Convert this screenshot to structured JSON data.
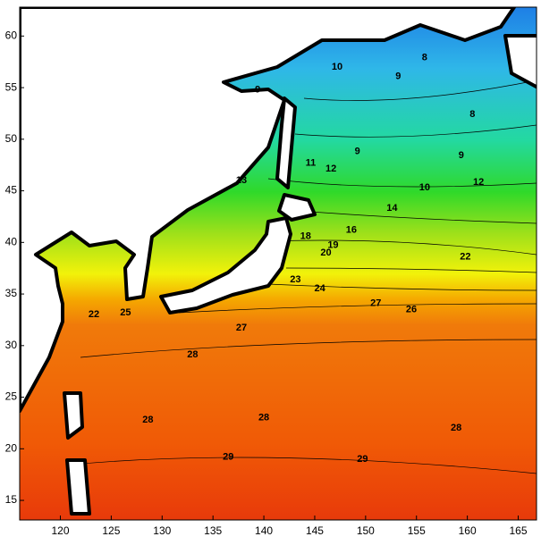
{
  "chart_data": {
    "type": "contour",
    "xlim": [
      116,
      166.8
    ],
    "ylim": [
      13.1,
      62.8
    ],
    "xticks": [
      120,
      125,
      130,
      135,
      140,
      145,
      150,
      155,
      160,
      165
    ],
    "yticks": [
      15,
      20,
      25,
      30,
      35,
      40,
      45,
      50,
      55,
      60
    ],
    "contour_labels": [
      {
        "text": "10",
        "x": 147.2,
        "y": 57.0
      },
      {
        "text": "9",
        "x": 153.2,
        "y": 56.1
      },
      {
        "text": "8",
        "x": 155.8,
        "y": 57.9
      },
      {
        "text": "9",
        "x": 139.4,
        "y": 54.8
      },
      {
        "text": "8",
        "x": 160.5,
        "y": 52.4
      },
      {
        "text": "9",
        "x": 159.4,
        "y": 48.4
      },
      {
        "text": "9",
        "x": 149.2,
        "y": 48.8
      },
      {
        "text": "11",
        "x": 144.6,
        "y": 47.7
      },
      {
        "text": "12",
        "x": 146.6,
        "y": 47.1
      },
      {
        "text": "13",
        "x": 137.8,
        "y": 46.0
      },
      {
        "text": "10",
        "x": 155.8,
        "y": 45.3
      },
      {
        "text": "12",
        "x": 161.1,
        "y": 45.8
      },
      {
        "text": "14",
        "x": 152.6,
        "y": 43.3
      },
      {
        "text": "16",
        "x": 148.6,
        "y": 41.2
      },
      {
        "text": "18",
        "x": 144.1,
        "y": 40.6
      },
      {
        "text": "19",
        "x": 146.8,
        "y": 39.7
      },
      {
        "text": "20",
        "x": 146.1,
        "y": 39.0
      },
      {
        "text": "22",
        "x": 159.8,
        "y": 38.6
      },
      {
        "text": "23",
        "x": 143.1,
        "y": 36.4
      },
      {
        "text": "24",
        "x": 145.5,
        "y": 35.5
      },
      {
        "text": "27",
        "x": 151.0,
        "y": 34.1
      },
      {
        "text": "26",
        "x": 154.5,
        "y": 33.5
      },
      {
        "text": "25",
        "x": 126.4,
        "y": 33.2
      },
      {
        "text": "22",
        "x": 123.3,
        "y": 33.0
      },
      {
        "text": "27",
        "x": 137.8,
        "y": 31.7
      },
      {
        "text": "28",
        "x": 133.0,
        "y": 29.1
      },
      {
        "text": "28",
        "x": 128.6,
        "y": 22.8
      },
      {
        "text": "28",
        "x": 140.0,
        "y": 23.0
      },
      {
        "text": "28",
        "x": 158.9,
        "y": 22.0
      },
      {
        "text": "29",
        "x": 136.5,
        "y": 19.2
      },
      {
        "text": "29",
        "x": 149.7,
        "y": 19.0
      }
    ]
  }
}
